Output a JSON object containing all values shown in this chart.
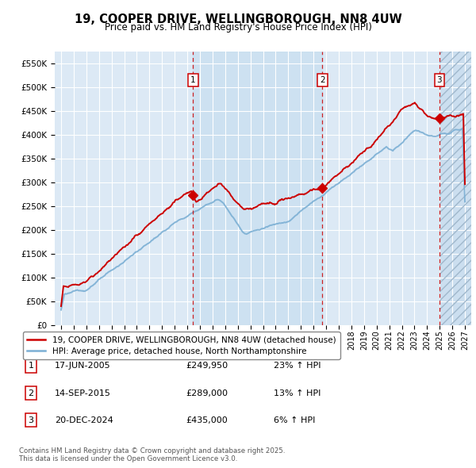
{
  "title": "19, COOPER DRIVE, WELLINGBOROUGH, NN8 4UW",
  "subtitle": "Price paid vs. HM Land Registry's House Price Index (HPI)",
  "legend_label_red": "19, COOPER DRIVE, WELLINGBOROUGH, NN8 4UW (detached house)",
  "legend_label_blue": "HPI: Average price, detached house, North Northamptonshire",
  "footnote": "Contains HM Land Registry data © Crown copyright and database right 2025.\nThis data is licensed under the Open Government Licence v3.0.",
  "transactions": [
    {
      "num": 1,
      "date": "17-JUN-2005",
      "price": "£249,950",
      "pct": "23% ↑ HPI"
    },
    {
      "num": 2,
      "date": "14-SEP-2015",
      "price": "£289,000",
      "pct": "13% ↑ HPI"
    },
    {
      "num": 3,
      "date": "20-DEC-2024",
      "price": "£435,000",
      "pct": "6% ↑ HPI"
    }
  ],
  "transaction_years": [
    2005.46,
    2015.71,
    2024.97
  ],
  "ylim": [
    0,
    575000
  ],
  "yticks": [
    0,
    50000,
    100000,
    150000,
    200000,
    250000,
    300000,
    350000,
    400000,
    450000,
    500000,
    550000
  ],
  "xlim_start": 1994.5,
  "xlim_end": 2027.5,
  "background_color": "#dce9f5",
  "grid_color": "#ffffff",
  "red_color": "#cc0000",
  "blue_color": "#7bafd4",
  "shade_color": "#c8dff0",
  "hatch_color": "#b8cfe0"
}
